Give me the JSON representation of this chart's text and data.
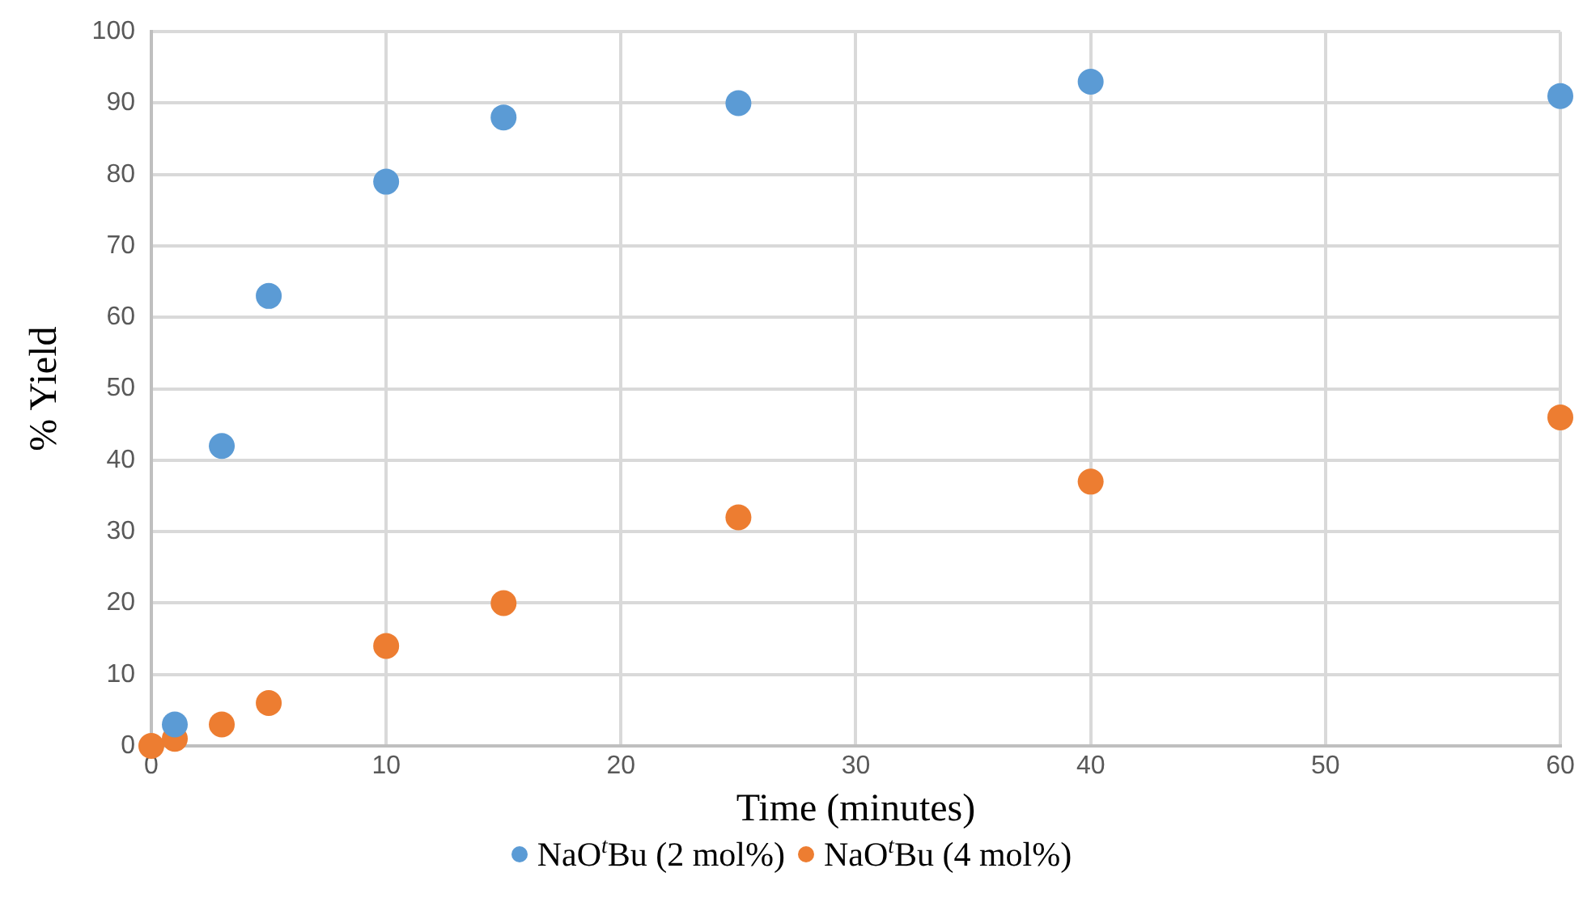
{
  "chart_data": {
    "type": "scatter",
    "xlabel": "Time (minutes)",
    "ylabel": "% Yield",
    "xlim": [
      0,
      60
    ],
    "xticks": [
      0,
      10,
      20,
      30,
      40,
      50,
      60
    ],
    "ylim": [
      0,
      100
    ],
    "yticks": [
      0,
      10,
      20,
      30,
      40,
      50,
      60,
      70,
      80,
      90,
      100
    ],
    "grid": true,
    "legend": "bottom",
    "marker": "circle",
    "series": [
      {
        "name": "NaO$^{t}$Bu (2 mol%)",
        "color": "#5b9bd5",
        "x": [
          1,
          3,
          5,
          10,
          15,
          25,
          40,
          60
        ],
        "values": [
          3,
          42,
          63,
          79,
          88,
          90,
          93,
          91
        ]
      },
      {
        "name": "NaO$^{t}$Bu (4 mol%)",
        "color": "#ed7d31",
        "x": [
          0,
          1,
          3,
          5,
          10,
          15,
          25,
          40,
          60
        ],
        "values": [
          0,
          1,
          3,
          6,
          14,
          20,
          32,
          37,
          46
        ]
      }
    ]
  }
}
